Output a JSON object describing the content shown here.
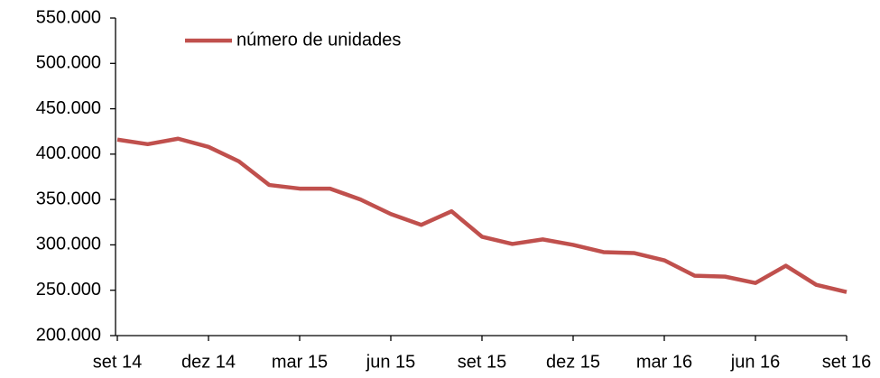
{
  "chart_data": {
    "type": "line",
    "categories": [
      "set 14",
      null,
      null,
      "dez 14",
      null,
      null,
      "mar 15",
      null,
      null,
      "jun 15",
      null,
      null,
      "set 15",
      null,
      null,
      "dez 15",
      null,
      null,
      "mar 16",
      null,
      null,
      "jun 16",
      null,
      null,
      "set 16"
    ],
    "series": [
      {
        "name": "número de unidades",
        "color": "#c0504d",
        "values": [
          416000,
          411000,
          417000,
          408000,
          392000,
          366000,
          362000,
          362000,
          350000,
          334000,
          322000,
          337000,
          309000,
          301000,
          306000,
          300000,
          292000,
          291000,
          283000,
          266000,
          265000,
          258000,
          277000,
          256000,
          248000
        ]
      }
    ],
    "ylim": [
      200000,
      550000
    ],
    "yticks": [
      {
        "value": 200000,
        "label": "200.000"
      },
      {
        "value": 250000,
        "label": "250.000"
      },
      {
        "value": 300000,
        "label": "300.000"
      },
      {
        "value": 350000,
        "label": "350.000"
      },
      {
        "value": 400000,
        "label": "400.000"
      },
      {
        "value": 450000,
        "label": "450.000"
      },
      {
        "value": 500000,
        "label": "500.000"
      },
      {
        "value": 550000,
        "label": "550.000"
      }
    ],
    "grid": false,
    "legend": "top-left"
  }
}
